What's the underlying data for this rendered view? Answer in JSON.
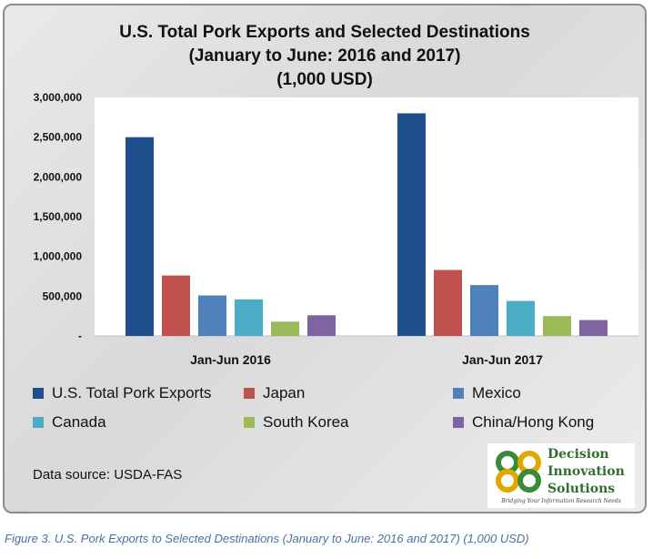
{
  "chart_data": {
    "type": "bar",
    "title": "U.S. Total Pork Exports and Selected Destinations",
    "subtitle": "(January to June: 2016 and 2017)",
    "unit_line": "(1,000 USD)",
    "categories": [
      "Jan-Jun 2016",
      "Jan-Jun 2017"
    ],
    "series": [
      {
        "name": "U.S. Total Pork Exports",
        "color": "#1f4e8c",
        "values": [
          2500000,
          2800000
        ]
      },
      {
        "name": "Japan",
        "color": "#c0504d",
        "values": [
          760000,
          830000
        ]
      },
      {
        "name": "Mexico",
        "color": "#4f81bd",
        "values": [
          510000,
          640000
        ]
      },
      {
        "name": "Canada",
        "color": "#4bacc6",
        "values": [
          460000,
          440000
        ]
      },
      {
        "name": "South Korea",
        "color": "#9bbb59",
        "values": [
          180000,
          250000
        ]
      },
      {
        "name": "China/Hong Kong",
        "color": "#8064a2",
        "values": [
          260000,
          200000
        ]
      }
    ],
    "ylim": [
      0,
      3000000
    ],
    "yticks": [
      0,
      500000,
      1000000,
      1500000,
      2000000,
      2500000,
      3000000
    ],
    "ytick_labels": [
      "-",
      "500,000",
      "1,000,000",
      "1,500,000",
      "2,000,000",
      "2,500,000",
      "3,000,000"
    ],
    "legend_position": "bottom",
    "grid": false
  },
  "source": "Data source: USDA-FAS",
  "logo": {
    "line1": "Decision",
    "line2": "Innovation",
    "line3": "Solutions",
    "tagline": "Bridging Your Information Research Needs"
  },
  "caption": "Figure 3. U.S. Pork Exports to Selected Destinations (January to June: 2016 and 2017) (1,000 USD)"
}
